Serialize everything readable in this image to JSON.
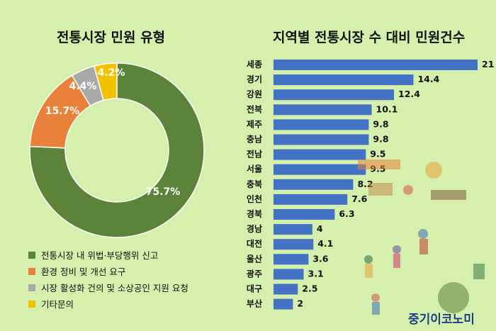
{
  "chart_data": [
    {
      "type": "pie",
      "title": "전통시장 민원 유형",
      "categories": [
        "전통시장 내 위법·부당행위 신고",
        "환경 정비 및 개선 요구",
        "시장 활성화 건의 및 소상공인 지원 요청",
        "기타문의"
      ],
      "values": [
        75.7,
        15.7,
        4.4,
        4.2
      ],
      "value_labels": [
        "75.7%",
        "15.7%",
        "4.4%",
        "4.2%"
      ],
      "colors": [
        "#5b843a",
        "#e8823a",
        "#a9a9a9",
        "#f2c200"
      ],
      "legend": "bottom-left",
      "donut": true
    },
    {
      "type": "bar",
      "orientation": "horizontal",
      "title": "지역별 전통시장 수 대비 민원건수",
      "categories": [
        "세종",
        "경기",
        "강원",
        "전북",
        "제주",
        "충남",
        "전남",
        "서울",
        "충북",
        "인천",
        "경북",
        "경남",
        "대전",
        "울산",
        "광주",
        "대구",
        "부산"
      ],
      "values": [
        21,
        14.4,
        12.4,
        10.1,
        9.8,
        9.8,
        9.5,
        9.5,
        8.2,
        7.6,
        6.3,
        4,
        4.1,
        3.6,
        3.1,
        2.5,
        2
      ],
      "value_labels": [
        "21",
        "14.4",
        "12.4",
        "10.1",
        "9.8",
        "9.8",
        "9.5",
        "9.5",
        "8.2",
        "7.6",
        "6.3",
        "4",
        "4.1",
        "3.6",
        "3.1",
        "2.5",
        "2"
      ],
      "bar_color": "#4472c4",
      "xlim": [
        0,
        21
      ]
    }
  ],
  "brand": "중기이코노미",
  "colors": {
    "background": "#d5efad"
  }
}
